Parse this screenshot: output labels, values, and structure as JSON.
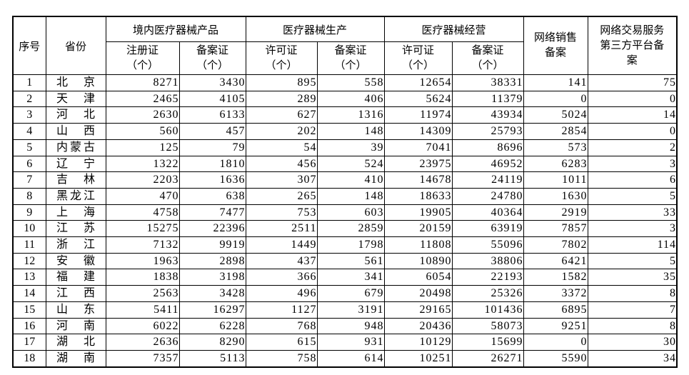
{
  "page": {
    "background": "#ffffff",
    "text_color": "#000000",
    "border_color": "#000000"
  },
  "table": {
    "columns": {
      "seq": "序号",
      "province": "省份",
      "groups": [
        {
          "label": "境内医疗器械产品"
        },
        {
          "label": "医疗器械生产"
        },
        {
          "label": "医疗器械经营"
        }
      ],
      "sub_headers": [
        {
          "line1": "注册证",
          "line2": "（个）"
        },
        {
          "line1": "备案证",
          "line2": "（个）"
        },
        {
          "line1": "许可证",
          "line2": "（个）"
        },
        {
          "line1": "备案证",
          "line2": "（个）"
        },
        {
          "line1": "许可证",
          "line2": "（个）"
        },
        {
          "line1": "备案证",
          "line2": "（个）"
        }
      ],
      "network_sales": "网络销售备案",
      "platform": "网络交易服务第三方平台备案"
    },
    "rows": [
      {
        "seq": "1",
        "province": "北京",
        "values": [
          "8271",
          "3430",
          "895",
          "558",
          "12654",
          "38331",
          "141",
          "75"
        ]
      },
      {
        "seq": "2",
        "province": "天津",
        "values": [
          "2465",
          "4105",
          "289",
          "406",
          "5624",
          "11379",
          "0",
          "0"
        ]
      },
      {
        "seq": "3",
        "province": "河北",
        "values": [
          "2630",
          "6133",
          "627",
          "1316",
          "11974",
          "43934",
          "5024",
          "14"
        ]
      },
      {
        "seq": "4",
        "province": "山西",
        "values": [
          "560",
          "457",
          "202",
          "148",
          "14309",
          "25793",
          "2854",
          "0"
        ]
      },
      {
        "seq": "5",
        "province": "内蒙古",
        "values": [
          "125",
          "79",
          "54",
          "39",
          "7041",
          "8696",
          "573",
          "2"
        ]
      },
      {
        "seq": "6",
        "province": "辽宁",
        "values": [
          "1322",
          "1810",
          "456",
          "524",
          "23975",
          "46952",
          "6283",
          "3"
        ]
      },
      {
        "seq": "7",
        "province": "吉林",
        "values": [
          "2203",
          "1636",
          "307",
          "410",
          "14678",
          "24119",
          "1011",
          "6"
        ]
      },
      {
        "seq": "8",
        "province": "黑龙江",
        "values": [
          "470",
          "638",
          "265",
          "148",
          "18633",
          "24780",
          "1630",
          "5"
        ]
      },
      {
        "seq": "9",
        "province": "上海",
        "values": [
          "4758",
          "7477",
          "753",
          "603",
          "19905",
          "40364",
          "2919",
          "33"
        ]
      },
      {
        "seq": "10",
        "province": "江苏",
        "values": [
          "15275",
          "22396",
          "2511",
          "2859",
          "20159",
          "63919",
          "7857",
          "3"
        ]
      },
      {
        "seq": "11",
        "province": "浙江",
        "values": [
          "7132",
          "9919",
          "1449",
          "1798",
          "11808",
          "55096",
          "7802",
          "114"
        ]
      },
      {
        "seq": "12",
        "province": "安徽",
        "values": [
          "1963",
          "2898",
          "437",
          "561",
          "10890",
          "38806",
          "6421",
          "5"
        ]
      },
      {
        "seq": "13",
        "province": "福建",
        "values": [
          "1838",
          "3198",
          "366",
          "341",
          "6054",
          "22193",
          "1582",
          "35"
        ]
      },
      {
        "seq": "14",
        "province": "江西",
        "values": [
          "2563",
          "3428",
          "496",
          "679",
          "20498",
          "25326",
          "3372",
          "8"
        ]
      },
      {
        "seq": "15",
        "province": "山东",
        "values": [
          "5411",
          "16297",
          "1127",
          "3191",
          "29165",
          "101436",
          "6895",
          "7"
        ]
      },
      {
        "seq": "16",
        "province": "河南",
        "values": [
          "6022",
          "6228",
          "768",
          "948",
          "20436",
          "58073",
          "9251",
          "8"
        ]
      },
      {
        "seq": "17",
        "province": "湖北",
        "values": [
          "2636",
          "8290",
          "615",
          "931",
          "10129",
          "15699",
          "0",
          "30"
        ]
      },
      {
        "seq": "18",
        "province": "湖南",
        "values": [
          "7357",
          "5113",
          "758",
          "614",
          "10251",
          "26271",
          "5590",
          "34"
        ]
      }
    ]
  }
}
